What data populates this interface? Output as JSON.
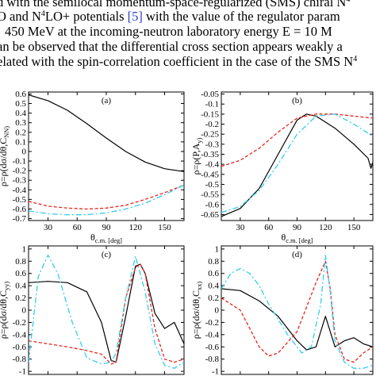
{
  "text": {
    "line1_a": "d with the semilocal momentum-space-regularized (SMS) chiral N",
    "line1_sup": "4",
    "line2_a": "O and N",
    "line2_sup": "4",
    "line2_b": "LO+ potentials ",
    "line2_cite": "[5]",
    "line2_c": " with the value of the regulator param",
    "line3": "450 MeV at the incoming-neutron laboratory energy E = 10 M",
    "line4": "an be observed that the differential cross section appears weakly a",
    "line5_a": "elated with the spin-correlation coefficient in the case of the SMS N",
    "line5_sup": "4"
  },
  "colors": {
    "series_a": "#000000",
    "series_b": "#e8231a",
    "series_c": "#33ccee"
  },
  "chart_data": [
    {
      "type": "line",
      "panel_label": "(a)",
      "ylabel": "ρ=ρ(dσ/dθ,C_NN)",
      "xlabel": "θ_c.m. [deg]",
      "xlim": [
        10,
        170
      ],
      "ylim": [
        -0.72,
        0.62
      ],
      "xticks": [
        "30",
        "60",
        "90",
        "120",
        "150"
      ],
      "yticks": [
        "0.6",
        "0.5",
        "0.4",
        "0.3",
        "0.2",
        "0.1",
        "0",
        "-0.1",
        "-0.2",
        "-0.3",
        "-0.4",
        "-0.5",
        "-0.6",
        "-0.7"
      ],
      "series": [
        {
          "style": "solid",
          "x": [
            10,
            30,
            50,
            70,
            90,
            110,
            130,
            150,
            170
          ],
          "y": [
            0.59,
            0.53,
            0.43,
            0.29,
            0.14,
            0.0,
            -0.11,
            -0.18,
            -0.21
          ]
        },
        {
          "style": "dashed",
          "x": [
            10,
            30,
            50,
            70,
            90,
            110,
            130,
            150,
            170
          ],
          "y": [
            -0.52,
            -0.57,
            -0.59,
            -0.6,
            -0.59,
            -0.56,
            -0.5,
            -0.43,
            -0.35
          ]
        },
        {
          "style": "dashdot",
          "x": [
            10,
            30,
            50,
            70,
            90,
            110,
            130,
            150,
            170
          ],
          "y": [
            -0.62,
            -0.65,
            -0.66,
            -0.66,
            -0.64,
            -0.6,
            -0.54,
            -0.45,
            -0.35
          ]
        }
      ]
    },
    {
      "type": "line",
      "panel_label": "(b)",
      "ylabel": "ρ=ρ(P,A_y)",
      "xlabel": "θ_c.m. [deg]",
      "xlim": [
        10,
        170
      ],
      "ylim": [
        -0.68,
        -0.04
      ],
      "xticks": [
        "30",
        "60",
        "90",
        "120",
        "150"
      ],
      "yticks": [
        "-0.05",
        "-0.1",
        "-0.15",
        "-0.2",
        "-0.25",
        "-0.3",
        "-0.35",
        "-0.4",
        "-0.45",
        "-0.5",
        "-0.55",
        "-0.6",
        "-0.65"
      ],
      "series": [
        {
          "style": "solid",
          "x": [
            10,
            30,
            50,
            70,
            90,
            100,
            110,
            130,
            150,
            165,
            168,
            170
          ],
          "y": [
            -0.66,
            -0.62,
            -0.52,
            -0.35,
            -0.18,
            -0.15,
            -0.16,
            -0.22,
            -0.3,
            -0.37,
            -0.42,
            -0.39
          ]
        },
        {
          "style": "dashed",
          "x": [
            10,
            30,
            50,
            70,
            90,
            110,
            130,
            150,
            170
          ],
          "y": [
            -0.41,
            -0.38,
            -0.32,
            -0.24,
            -0.17,
            -0.15,
            -0.15,
            -0.16,
            -0.17
          ]
        },
        {
          "style": "dashdot",
          "x": [
            10,
            30,
            50,
            70,
            90,
            110,
            130,
            150,
            170
          ],
          "y": [
            -0.64,
            -0.61,
            -0.53,
            -0.4,
            -0.25,
            -0.16,
            -0.15,
            -0.2,
            -0.26
          ]
        }
      ]
    },
    {
      "type": "line",
      "panel_label": "(c)",
      "ylabel": "ρ=ρ(dσ/dθ,C_yy)",
      "xlim": [
        10,
        170
      ],
      "ylim": [
        -1.05,
        1.05
      ],
      "yticks": [
        "1",
        "0.8",
        "0.6",
        "0.4",
        "0.2",
        "0",
        "-0.2",
        "-0.4",
        "-0.6",
        "-0.8",
        "-1"
      ],
      "series": [
        {
          "style": "solid",
          "x": [
            10,
            30,
            50,
            70,
            85,
            95,
            100,
            110,
            120,
            125,
            130,
            140,
            150,
            160,
            170
          ],
          "y": [
            0.45,
            0.47,
            0.45,
            0.3,
            -0.2,
            -0.82,
            -0.85,
            -0.1,
            0.72,
            0.75,
            0.6,
            -0.05,
            -0.3,
            -0.2,
            -0.55
          ]
        },
        {
          "style": "dashed",
          "x": [
            10,
            30,
            50,
            70,
            85,
            95,
            100,
            110,
            120,
            125,
            130,
            140,
            150,
            160,
            170
          ],
          "y": [
            -0.5,
            -0.55,
            -0.6,
            -0.66,
            -0.72,
            -0.88,
            -0.85,
            0.2,
            0.7,
            0.75,
            0.6,
            -0.3,
            -0.8,
            -0.85,
            -0.8
          ]
        },
        {
          "style": "dashdot",
          "x": [
            10,
            20,
            30,
            40,
            55,
            70,
            85,
            95,
            100,
            110,
            120,
            130,
            140,
            150,
            160,
            170
          ],
          "y": [
            -0.85,
            0.55,
            0.9,
            0.6,
            -0.2,
            -0.78,
            -0.88,
            -0.85,
            -0.7,
            0.2,
            0.88,
            0.3,
            -0.55,
            -0.9,
            -0.95,
            -0.85
          ]
        }
      ]
    },
    {
      "type": "line",
      "panel_label": "(d)",
      "ylabel": "ρ=ρ(dσ/dθ,C_xx)",
      "xlim": [
        10,
        170
      ],
      "ylim": [
        -1.05,
        1.05
      ],
      "yticks": [
        "1",
        "0.8",
        "0.6",
        "0.4",
        "0.2",
        "0",
        "-0.2",
        "-0.4",
        "-0.6",
        "-0.8",
        "-1"
      ],
      "series": [
        {
          "style": "solid",
          "x": [
            10,
            30,
            50,
            70,
            90,
            100,
            110,
            115,
            120,
            125,
            130,
            140,
            150,
            160,
            170
          ],
          "y": [
            0.35,
            0.32,
            0.15,
            -0.1,
            -0.5,
            -0.65,
            -0.6,
            -0.35,
            -0.1,
            -0.35,
            -0.6,
            -0.5,
            -0.45,
            -0.55,
            -0.6
          ]
        },
        {
          "style": "dashed",
          "x": [
            10,
            30,
            50,
            60,
            70,
            90,
            110,
            120,
            125,
            130,
            140,
            150,
            160,
            170
          ],
          "y": [
            0.2,
            0.0,
            -0.6,
            -0.75,
            -0.7,
            -0.35,
            0.45,
            0.8,
            0.35,
            -0.4,
            -0.8,
            -0.85,
            -0.7,
            -0.6
          ]
        },
        {
          "style": "dashdot",
          "x": [
            10,
            20,
            30,
            40,
            50,
            60,
            80,
            95,
            105,
            115,
            120,
            125,
            130,
            140,
            150,
            160,
            170
          ],
          "y": [
            0.35,
            0.6,
            0.68,
            0.6,
            0.4,
            0.1,
            -0.4,
            -0.7,
            -0.6,
            0.1,
            0.9,
            0.3,
            -0.5,
            -0.85,
            -0.95,
            -0.95,
            -0.9
          ]
        }
      ]
    }
  ]
}
